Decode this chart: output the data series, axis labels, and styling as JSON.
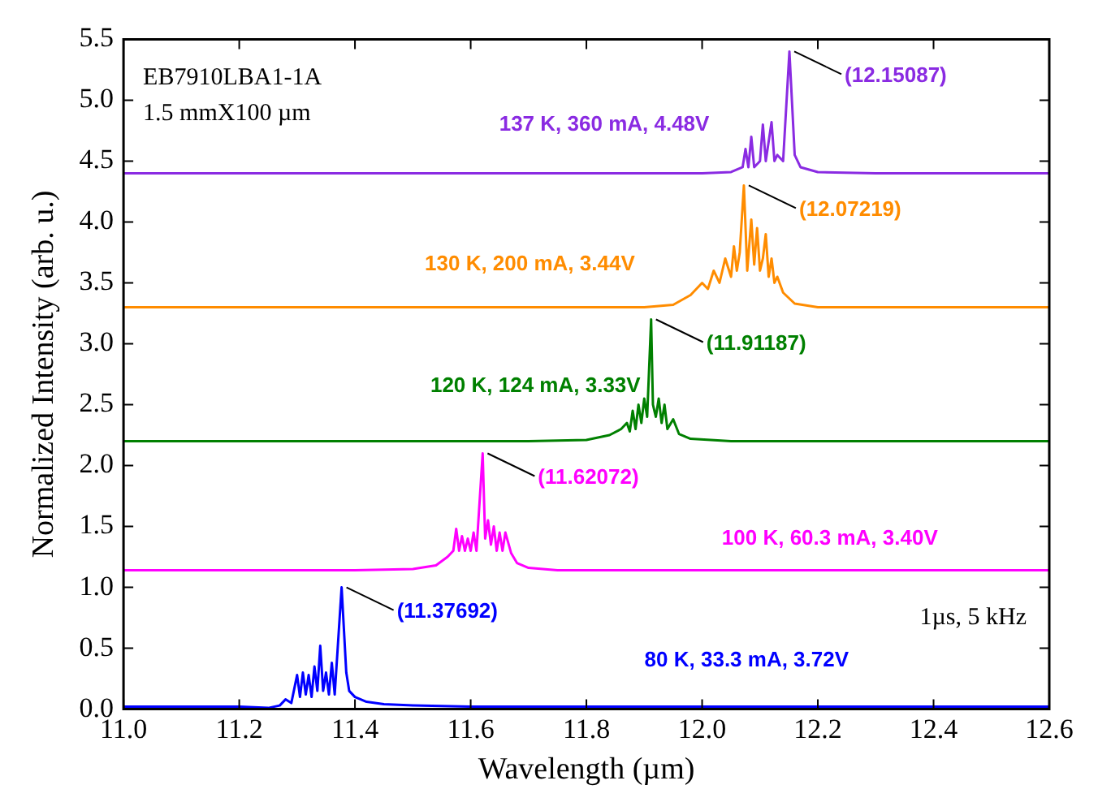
{
  "chart_data": {
    "type": "line",
    "xlabel": "Wavelength (µm)",
    "ylabel": "Normalized Intensity (arb. u.)",
    "xlim": [
      11.0,
      12.6
    ],
    "ylim": [
      0,
      5.5
    ],
    "xticks": [
      {
        "value": 11.0,
        "label": "11.0"
      },
      {
        "value": 11.2,
        "label": "11.2"
      },
      {
        "value": 11.4,
        "label": "11.4"
      },
      {
        "value": 11.6,
        "label": "11.6"
      },
      {
        "value": 11.8,
        "label": "11.8"
      },
      {
        "value": 12.0,
        "label": "12.0"
      },
      {
        "value": 12.2,
        "label": "12.2"
      },
      {
        "value": 12.4,
        "label": "12.4"
      },
      {
        "value": 12.6,
        "label": "12.6"
      }
    ],
    "yticks": [
      {
        "value": 0,
        "label": "0.0"
      },
      {
        "value": 0.5,
        "label": "0.5"
      },
      {
        "value": 1,
        "label": "1.0"
      },
      {
        "value": 1.5,
        "label": "1.5"
      },
      {
        "value": 2,
        "label": "2.0"
      },
      {
        "value": 2.5,
        "label": "2.5"
      },
      {
        "value": 3,
        "label": "3.0"
      },
      {
        "value": 3.5,
        "label": "3.5"
      },
      {
        "value": 4,
        "label": "4.0"
      },
      {
        "value": 4.5,
        "label": "4.5"
      },
      {
        "value": 5,
        "label": "5.0"
      },
      {
        "value": 5.5,
        "label": "5.5"
      }
    ],
    "grid": false,
    "legend": false,
    "marker": "none",
    "line_style": "solid",
    "series": [
      {
        "name": "137 K, 360 mA, 4.48V",
        "color": "#8a2be2",
        "x": [
          11.0,
          12.0,
          12.05,
          12.07,
          12.075,
          12.08,
          12.085,
          12.09,
          12.1,
          12.105,
          12.11,
          12.12,
          12.125,
          12.13,
          12.14,
          12.15087,
          12.16,
          12.17,
          12.2,
          12.3,
          12.6
        ],
        "values": [
          4.4,
          4.4,
          4.41,
          4.45,
          4.6,
          4.45,
          4.7,
          4.45,
          4.5,
          4.8,
          4.5,
          4.82,
          4.5,
          4.55,
          4.5,
          5.4,
          4.55,
          4.45,
          4.41,
          4.4,
          4.4
        ]
      },
      {
        "name": "130 K, 200 mA, 3.44V",
        "color": "#ff8c00",
        "x": [
          11.0,
          11.9,
          11.95,
          11.98,
          12.0,
          12.01,
          12.02,
          12.03,
          12.04,
          12.05,
          12.055,
          12.06,
          12.065,
          12.07219,
          12.078,
          12.085,
          12.09,
          12.095,
          12.1,
          12.105,
          12.11,
          12.115,
          12.12,
          12.125,
          12.13,
          12.14,
          12.16,
          12.2,
          12.6
        ],
        "values": [
          3.3,
          3.3,
          3.32,
          3.4,
          3.5,
          3.45,
          3.6,
          3.5,
          3.7,
          3.55,
          3.8,
          3.6,
          3.75,
          4.3,
          3.6,
          4.02,
          3.65,
          3.95,
          3.6,
          3.7,
          3.9,
          3.55,
          3.7,
          3.5,
          3.55,
          3.42,
          3.33,
          3.3,
          3.3
        ]
      },
      {
        "name": "120 K, 124 mA, 3.33V",
        "color": "#008000",
        "x": [
          11.0,
          11.7,
          11.8,
          11.84,
          11.86,
          11.87,
          11.875,
          11.88,
          11.885,
          11.89,
          11.895,
          11.9,
          11.905,
          11.91187,
          11.915,
          11.92,
          11.925,
          11.93,
          11.935,
          11.94,
          11.95,
          11.96,
          11.98,
          12.05,
          12.6
        ],
        "values": [
          2.2,
          2.2,
          2.21,
          2.25,
          2.3,
          2.35,
          2.28,
          2.45,
          2.3,
          2.5,
          2.35,
          2.55,
          2.4,
          3.2,
          2.5,
          2.4,
          2.55,
          2.35,
          2.5,
          2.3,
          2.38,
          2.26,
          2.22,
          2.2,
          2.2
        ]
      },
      {
        "name": "100 K, 60.3 mA, 3.40V",
        "color": "#ff00ff",
        "x": [
          11.0,
          11.2,
          11.4,
          11.5,
          11.54,
          11.56,
          11.57,
          11.575,
          11.58,
          11.585,
          11.59,
          11.595,
          11.6,
          11.605,
          11.61,
          11.62072,
          11.625,
          11.63,
          11.635,
          11.64,
          11.645,
          11.65,
          11.655,
          11.66,
          11.67,
          11.68,
          11.7,
          11.75,
          11.8,
          12.0,
          12.6
        ],
        "values": [
          1.14,
          1.14,
          1.14,
          1.15,
          1.18,
          1.25,
          1.3,
          1.48,
          1.3,
          1.42,
          1.3,
          1.4,
          1.3,
          1.45,
          1.3,
          2.1,
          1.4,
          1.55,
          1.35,
          1.5,
          1.3,
          1.45,
          1.3,
          1.45,
          1.28,
          1.2,
          1.16,
          1.14,
          1.14,
          1.14,
          1.14
        ]
      },
      {
        "name": "80 K, 33.3 mA, 3.72V",
        "color": "#0000ff",
        "x": [
          11.0,
          11.1,
          11.2,
          11.25,
          11.27,
          11.28,
          11.29,
          11.3,
          11.305,
          11.31,
          11.315,
          11.32,
          11.325,
          11.33,
          11.335,
          11.34,
          11.345,
          11.35,
          11.355,
          11.36,
          11.365,
          11.37692,
          11.385,
          11.39,
          11.4,
          11.42,
          11.45,
          11.5,
          11.6,
          12.0,
          12.6
        ],
        "values": [
          0.02,
          0.02,
          0.02,
          0.01,
          0.03,
          0.08,
          0.05,
          0.28,
          0.1,
          0.3,
          0.12,
          0.28,
          0.1,
          0.35,
          0.15,
          0.52,
          0.15,
          0.3,
          0.12,
          0.38,
          0.12,
          1.0,
          0.3,
          0.15,
          0.1,
          0.06,
          0.04,
          0.03,
          0.02,
          0.02,
          0.02
        ]
      }
    ],
    "annotations": [
      "EB7910LBA1-1A",
      "1.5 mmX100 µm",
      "1µs, 5 kHz",
      {
        "text": "(12.15087)",
        "x": 12.15087,
        "y": 5.4
      },
      {
        "text": "(12.07219)",
        "x": 12.07219,
        "y": 4.3
      },
      {
        "text": "(11.91187)",
        "x": 11.91187,
        "y": 3.2
      },
      {
        "text": "(11.62072)",
        "x": 11.62072,
        "y": 2.1
      },
      {
        "text": "(11.37692)",
        "x": 11.37692,
        "y": 1.0
      }
    ]
  }
}
